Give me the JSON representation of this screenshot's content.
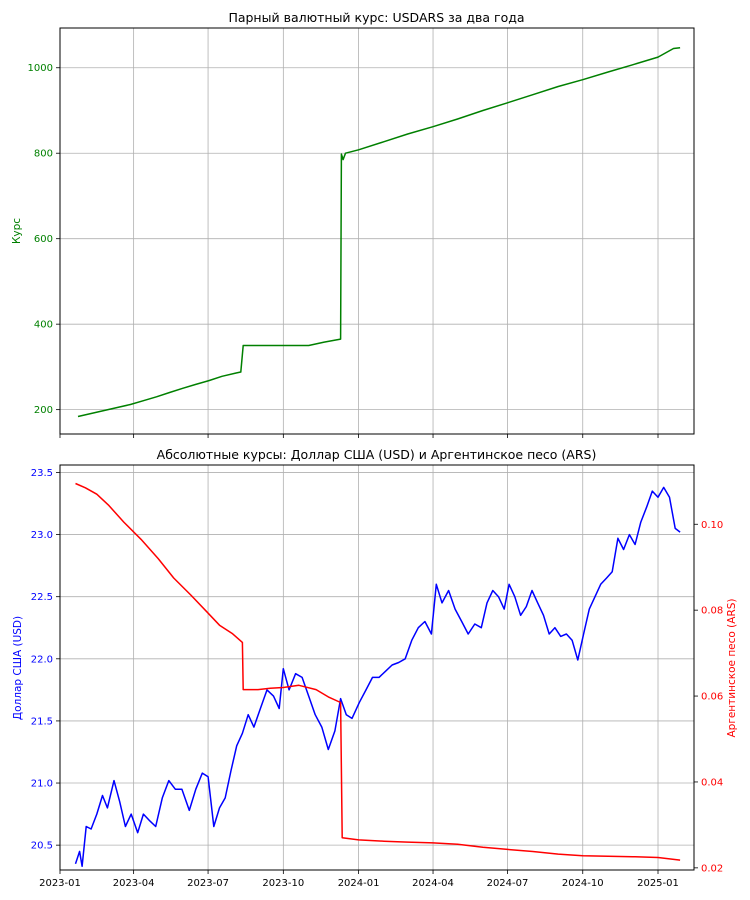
{
  "chart_data": [
    {
      "type": "line",
      "title": "Парный валютный курс: USDARS за два года",
      "xlabel": "",
      "ylabel": "Курс",
      "ylabel_color": "#008000",
      "x_range": [
        "2023-01-01",
        "2025-02-14"
      ],
      "ylim": [
        143,
        1093
      ],
      "y_ticks": [
        200,
        400,
        600,
        800,
        1000
      ],
      "grid": true,
      "series": [
        {
          "color": "#008000",
          "points": [
            [
              "2023-01-23",
              184
            ],
            [
              "2023-02-08",
              191
            ],
            [
              "2023-02-24",
              198
            ],
            [
              "2023-03-12",
              205
            ],
            [
              "2023-03-28",
              212
            ],
            [
              "2023-04-13",
              221
            ],
            [
              "2023-04-29",
              230
            ],
            [
              "2023-05-15",
              240
            ],
            [
              "2023-05-31",
              250
            ],
            [
              "2023-06-16",
              259
            ],
            [
              "2023-07-02",
              268
            ],
            [
              "2023-07-18",
              278
            ],
            [
              "2023-08-05",
              286
            ],
            [
              "2023-08-10",
              288
            ],
            [
              "2023-08-13",
              350
            ],
            [
              "2023-09-01",
              350
            ],
            [
              "2023-10-01",
              350
            ],
            [
              "2023-11-01",
              350
            ],
            [
              "2023-11-20",
              358
            ],
            [
              "2023-12-10",
              365
            ],
            [
              "2023-12-11",
              798
            ],
            [
              "2023-12-13",
              785
            ],
            [
              "2023-12-16",
              800
            ],
            [
              "2024-01-01",
              808
            ],
            [
              "2024-02-01",
              827
            ],
            [
              "2024-03-01",
              845
            ],
            [
              "2024-04-01",
              862
            ],
            [
              "2024-05-01",
              880
            ],
            [
              "2024-06-01",
              900
            ],
            [
              "2024-07-01",
              918
            ],
            [
              "2024-08-01",
              937
            ],
            [
              "2024-09-01",
              956
            ],
            [
              "2024-10-01",
              972
            ],
            [
              "2024-11-01",
              990
            ],
            [
              "2024-12-01",
              1007
            ],
            [
              "2025-01-01",
              1025
            ],
            [
              "2025-01-20",
              1045
            ],
            [
              "2025-01-28",
              1047
            ]
          ]
        }
      ]
    },
    {
      "type": "line",
      "title": "Абсолютные курсы: Доллар США (USD) и Аргентинское песо (ARS)",
      "xlabel": "",
      "x_range": [
        "2023-01-01",
        "2025-02-14"
      ],
      "x_ticks": [
        "2023-01",
        "2023-04",
        "2023-07",
        "2023-10",
        "2024-01",
        "2024-04",
        "2024-07",
        "2024-10",
        "2025-01"
      ],
      "grid": true,
      "y_left": {
        "label": "Доллар США (USD)",
        "color": "#0000ff",
        "ylim": [
          20.3,
          23.56
        ],
        "ticks": [
          "20.5",
          "21.0",
          "21.5",
          "22.0",
          "22.5",
          "23.0",
          "23.5"
        ]
      },
      "y_right": {
        "label": "Аргентинское песо (ARS)",
        "color": "#ff0000",
        "ylim": [
          0.0195,
          0.1138
        ],
        "ticks": [
          "0.02",
          "0.04",
          "0.06",
          "0.08",
          "0.10"
        ]
      },
      "series": [
        {
          "axis": "left",
          "color": "#0000ff",
          "points": [
            [
              "2023-01-20",
              20.35
            ],
            [
              "2023-01-25",
              20.45
            ],
            [
              "2023-01-28",
              20.33
            ],
            [
              "2023-02-02",
              20.65
            ],
            [
              "2023-02-08",
              20.63
            ],
            [
              "2023-02-15",
              20.75
            ],
            [
              "2023-02-22",
              20.9
            ],
            [
              "2023-02-28",
              20.8
            ],
            [
              "2023-03-08",
              21.02
            ],
            [
              "2023-03-15",
              20.85
            ],
            [
              "2023-03-22",
              20.65
            ],
            [
              "2023-03-29",
              20.75
            ],
            [
              "2023-04-06",
              20.6
            ],
            [
              "2023-04-13",
              20.75
            ],
            [
              "2023-04-20",
              20.7
            ],
            [
              "2023-04-28",
              20.65
            ],
            [
              "2023-05-06",
              20.88
            ],
            [
              "2023-05-14",
              21.02
            ],
            [
              "2023-05-22",
              20.95
            ],
            [
              "2023-05-30",
              20.95
            ],
            [
              "2023-06-08",
              20.78
            ],
            [
              "2023-06-16",
              20.95
            ],
            [
              "2023-06-24",
              21.08
            ],
            [
              "2023-07-01",
              21.05
            ],
            [
              "2023-07-08",
              20.65
            ],
            [
              "2023-07-15",
              20.8
            ],
            [
              "2023-07-22",
              20.88
            ],
            [
              "2023-07-29",
              21.1
            ],
            [
              "2023-08-05",
              21.3
            ],
            [
              "2023-08-12",
              21.4
            ],
            [
              "2023-08-19",
              21.55
            ],
            [
              "2023-08-26",
              21.45
            ],
            [
              "2023-09-03",
              21.6
            ],
            [
              "2023-09-11",
              21.75
            ],
            [
              "2023-09-19",
              21.7
            ],
            [
              "2023-09-26",
              21.6
            ],
            [
              "2023-10-01",
              21.92
            ],
            [
              "2023-10-08",
              21.75
            ],
            [
              "2023-10-16",
              21.88
            ],
            [
              "2023-10-24",
              21.85
            ],
            [
              "2023-11-01",
              21.7
            ],
            [
              "2023-11-09",
              21.55
            ],
            [
              "2023-11-17",
              21.45
            ],
            [
              "2023-11-25",
              21.27
            ],
            [
              "2023-12-03",
              21.42
            ],
            [
              "2023-12-10",
              21.68
            ],
            [
              "2023-12-17",
              21.55
            ],
            [
              "2023-12-24",
              21.52
            ],
            [
              "2024-01-02",
              21.65
            ],
            [
              "2024-01-10",
              21.75
            ],
            [
              "2024-01-18",
              21.85
            ],
            [
              "2024-01-26",
              21.85
            ],
            [
              "2024-02-03",
              21.9
            ],
            [
              "2024-02-11",
              21.95
            ],
            [
              "2024-02-19",
              21.97
            ],
            [
              "2024-02-27",
              22.0
            ],
            [
              "2024-03-06",
              22.15
            ],
            [
              "2024-03-14",
              22.25
            ],
            [
              "2024-03-22",
              22.3
            ],
            [
              "2024-03-30",
              22.2
            ],
            [
              "2024-04-05",
              22.6
            ],
            [
              "2024-04-12",
              22.45
            ],
            [
              "2024-04-20",
              22.55
            ],
            [
              "2024-04-28",
              22.4
            ],
            [
              "2024-05-06",
              22.3
            ],
            [
              "2024-05-14",
              22.2
            ],
            [
              "2024-05-22",
              22.28
            ],
            [
              "2024-05-30",
              22.25
            ],
            [
              "2024-06-06",
              22.45
            ],
            [
              "2024-06-13",
              22.55
            ],
            [
              "2024-06-20",
              22.5
            ],
            [
              "2024-06-27",
              22.4
            ],
            [
              "2024-07-03",
              22.6
            ],
            [
              "2024-07-10",
              22.5
            ],
            [
              "2024-07-17",
              22.35
            ],
            [
              "2024-07-24",
              22.42
            ],
            [
              "2024-07-31",
              22.55
            ],
            [
              "2024-08-07",
              22.45
            ],
            [
              "2024-08-14",
              22.35
            ],
            [
              "2024-08-21",
              22.2
            ],
            [
              "2024-08-28",
              22.25
            ],
            [
              "2024-09-04",
              22.18
            ],
            [
              "2024-09-11",
              22.2
            ],
            [
              "2024-09-18",
              22.15
            ],
            [
              "2024-09-25",
              21.99
            ],
            [
              "2024-10-02",
              22.2
            ],
            [
              "2024-10-09",
              22.4
            ],
            [
              "2024-10-16",
              22.5
            ],
            [
              "2024-10-23",
              22.6
            ],
            [
              "2024-10-30",
              22.65
            ],
            [
              "2024-11-06",
              22.7
            ],
            [
              "2024-11-13",
              22.97
            ],
            [
              "2024-11-20",
              22.88
            ],
            [
              "2024-11-27",
              23.0
            ],
            [
              "2024-12-04",
              22.92
            ],
            [
              "2024-12-11",
              23.1
            ],
            [
              "2024-12-18",
              23.22
            ],
            [
              "2024-12-25",
              23.35
            ],
            [
              "2025-01-01",
              23.3
            ],
            [
              "2025-01-08",
              23.38
            ],
            [
              "2025-01-15",
              23.3
            ],
            [
              "2025-01-22",
              23.05
            ],
            [
              "2025-01-28",
              23.02
            ]
          ]
        },
        {
          "axis": "right",
          "color": "#ff0000",
          "points": [
            [
              "2023-01-20",
              0.1095
            ],
            [
              "2023-02-01",
              0.1085
            ],
            [
              "2023-02-15",
              0.107
            ],
            [
              "2023-03-01",
              0.1045
            ],
            [
              "2023-03-20",
              0.1005
            ],
            [
              "2023-04-10",
              0.0965
            ],
            [
              "2023-05-01",
              0.092
            ],
            [
              "2023-05-20",
              0.0875
            ],
            [
              "2023-06-10",
              0.0835
            ],
            [
              "2023-06-30",
              0.0795
            ],
            [
              "2023-07-15",
              0.0765
            ],
            [
              "2023-07-31",
              0.0745
            ],
            [
              "2023-08-12",
              0.0725
            ],
            [
              "2023-08-13",
              0.0615
            ],
            [
              "2023-08-31",
              0.0615
            ],
            [
              "2023-09-15",
              0.0618
            ],
            [
              "2023-10-01",
              0.062
            ],
            [
              "2023-10-20",
              0.0625
            ],
            [
              "2023-11-10",
              0.0615
            ],
            [
              "2023-11-25",
              0.0598
            ],
            [
              "2023-12-10",
              0.0585
            ],
            [
              "2023-12-12",
              0.027
            ],
            [
              "2024-01-01",
              0.0265
            ],
            [
              "2024-02-01",
              0.0262
            ],
            [
              "2024-03-01",
              0.026
            ],
            [
              "2024-04-01",
              0.0258
            ],
            [
              "2024-05-01",
              0.0255
            ],
            [
              "2024-06-01",
              0.0248
            ],
            [
              "2024-07-01",
              0.0243
            ],
            [
              "2024-08-01",
              0.0238
            ],
            [
              "2024-09-01",
              0.0232
            ],
            [
              "2024-10-01",
              0.0228
            ],
            [
              "2024-11-01",
              0.0227
            ],
            [
              "2024-12-01",
              0.0226
            ],
            [
              "2025-01-01",
              0.0224
            ],
            [
              "2025-01-28",
              0.0218
            ]
          ]
        }
      ]
    }
  ]
}
